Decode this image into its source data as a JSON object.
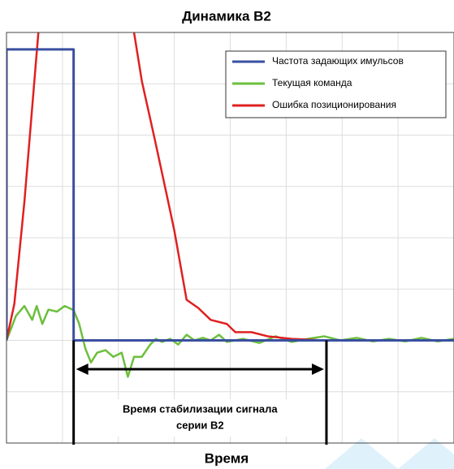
{
  "chart_data": {
    "type": "line",
    "title": "Динамика В2",
    "x_label": "Время",
    "xlim": [
      0,
      8
    ],
    "ylim": [
      -2,
      6
    ],
    "xticks": [
      0,
      1,
      2,
      3,
      4,
      5,
      6,
      7,
      8
    ],
    "yticks": [
      -2,
      -1,
      0,
      1,
      2,
      3,
      4,
      5,
      6
    ],
    "grid": true,
    "legend": "upper right",
    "series": [
      {
        "name": "Частота задающих имульсов",
        "color": "#3a4fa0",
        "x": [
          0,
          0,
          1.2,
          1.2,
          8
        ],
        "values": [
          0,
          5.67,
          5.67,
          0,
          0
        ]
      },
      {
        "name": "Текущая команда",
        "color": "#6cbf3c",
        "x": [
          0,
          0.17,
          0.32,
          0.46,
          0.54,
          0.64,
          0.75,
          0.9,
          1.04,
          1.2,
          1.3,
          1.41,
          1.51,
          1.62,
          1.77,
          1.91,
          2.06,
          2.17,
          2.28,
          2.42,
          2.57,
          2.67,
          2.78,
          2.93,
          3.07,
          3.22,
          3.36,
          3.51,
          3.65,
          3.8,
          3.94,
          4.23,
          4.52,
          4.81,
          5.1,
          5.39,
          5.68,
          5.97,
          6.26,
          6.55,
          6.84,
          7.13,
          7.42,
          7.71,
          7.99
        ],
        "values": [
          0,
          0.48,
          0.67,
          0.4,
          0.67,
          0.32,
          0.6,
          0.56,
          0.67,
          0.59,
          0.32,
          -0.16,
          -0.43,
          -0.24,
          -0.19,
          -0.32,
          -0.24,
          -0.71,
          -0.32,
          -0.32,
          -0.08,
          0.03,
          -0.03,
          0.03,
          -0.08,
          0.11,
          0,
          0.05,
          0,
          0.11,
          -0.03,
          0.03,
          -0.05,
          0.08,
          -0.03,
          0.03,
          0.08,
          0,
          0.05,
          -0.02,
          0.03,
          -0.02,
          0.05,
          -0.02,
          0.03
        ]
      },
      {
        "name": "Ошибка позиционирования",
        "color": "#e02020",
        "x": [
          0,
          0.14,
          0.32,
          0.57,
          null,
          2.28,
          2.42,
          2.64,
          2.86,
          3.0,
          3.22,
          3.43,
          3.65,
          3.94,
          4.09,
          4.38,
          4.67,
          5.1,
          5.68,
          8
        ],
        "values": [
          0,
          0.71,
          2.7,
          6,
          null,
          6,
          5.05,
          3.97,
          2.86,
          2.14,
          0.79,
          0.63,
          0.4,
          0.32,
          0.16,
          0.16,
          0.08,
          0.03,
          0,
          0
        ]
      }
    ],
    "annotation": {
      "text": [
        "Время стабилизации сигнала",
        "серии В2"
      ],
      "span": [
        1.2,
        5.72
      ]
    }
  }
}
